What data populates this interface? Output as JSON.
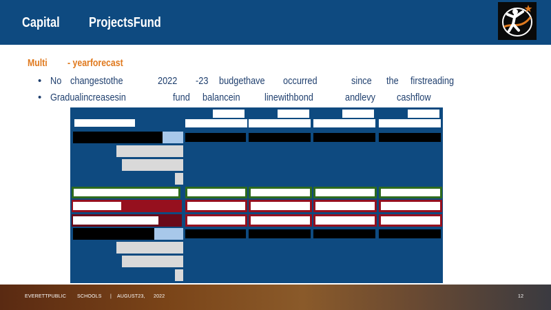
{
  "header": {
    "title_part1": "Capital",
    "title_part2": "ProjectsFund",
    "logo": "district-logo-icon"
  },
  "subheading": {
    "part1": "Multi",
    "part2": "- yearforecast"
  },
  "bullets": [
    [
      "No",
      "changestothe",
      "2022",
      "-23",
      "budgethave",
      "occurred",
      "since",
      "the",
      "firstreading"
    ],
    [
      "Gradualincreasesin",
      "fund",
      "balancein",
      "linewithbond",
      "andlevy",
      "cashflow"
    ]
  ],
  "footer": {
    "org_part1": "EVERETTPUBLIC",
    "org_part2": "SCHOOLS",
    "separator": "|",
    "date_part1": "AUGUST23,",
    "date_part2": "2022",
    "page_number": "12"
  },
  "colors": {
    "header": "#0e4a80",
    "accent": "#e07a1f",
    "text": "#1f3f6e",
    "table_blue": "#0e4a80",
    "table_black": "#000000",
    "table_light_blue": "#a8c8ea",
    "table_gray": "#d9d9d9",
    "table_green": "#2e6b1e",
    "table_red": "#96101e",
    "table_dark_red": "#6a0a1a"
  }
}
